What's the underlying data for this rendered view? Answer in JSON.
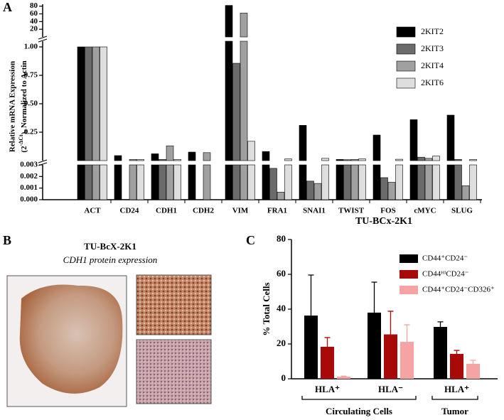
{
  "panel_labels": [
    "A",
    "B",
    "C"
  ],
  "chart_data": [
    {
      "type": "broken-bar",
      "ylabel": {
        "line1": "Relative mRNA Expression",
        "line2_a": "(2",
        "line2_sup": "-ΔCt",
        "line2_b": "), Normalized to Actin"
      },
      "categories": [
        "ACT",
        "CD24",
        "CDH1",
        "CDH2",
        "VIM",
        "FRA1",
        "SNAI1",
        "TWIST",
        "FOS",
        "cMYC",
        "SLUG"
      ],
      "series": [
        {
          "name": "2KIT2",
          "color": "#000000",
          "values": [
            1.0,
            0.044,
            0.06,
            0.075,
            82,
            0.08,
            0.31,
            0.01,
            0.225,
            0.36,
            0.4
          ]
        },
        {
          "name": "2KIT3",
          "color": "#6b6b6b",
          "values": [
            1.0,
            2e-05,
            0.01,
            null,
            0.856,
            0.0027,
            0.0016,
            0.008,
            0.0019,
            0.03,
            0.01
          ]
        },
        {
          "name": "2KIT4",
          "color": "#a0a0a0",
          "values": [
            1.0,
            0.01,
            0.13,
            0.07,
            62,
            0.00065,
            0.0014,
            0.01,
            0.0015,
            0.02,
            0.0012
          ]
        },
        {
          "name": "2KIT6",
          "color": "#dedede",
          "values": [
            1.0,
            0.01,
            0.01,
            null,
            0.17,
            0.015,
            0.02,
            0.015,
            0.012,
            0.04,
            0.01
          ]
        }
      ],
      "y_segments": [
        {
          "ylim": [
            0,
            0.003
          ],
          "yticks": [
            {
              "value": 0,
              "label": "0.000"
            },
            {
              "value": 0.001,
              "label": "0.001"
            },
            {
              "value": 0.002,
              "label": "0.002"
            },
            {
              "value": 0.003,
              "label": "0.003"
            }
          ]
        },
        {
          "ylim": [
            0,
            1.05
          ],
          "yticks": [
            0.25,
            {
              "value": 0.5,
              "label": "0.50"
            },
            0.75,
            {
              "value": 1,
              "label": "1.00"
            }
          ]
        },
        {
          "ylim": [
            0,
            85
          ],
          "yticks": [
            20,
            40,
            60,
            80
          ]
        }
      ],
      "legend": "top-right"
    },
    {
      "type": "bar-error",
      "title": "TU-BCx-2K1",
      "ylabel": "% Total Cells",
      "categories": [
        "HLA⁺",
        "HLA⁻",
        "HLA⁺"
      ],
      "group_labels": [
        "Circulating Cells",
        "Tumor"
      ],
      "series": [
        {
          "name": "CD44⁺CD24⁻",
          "color": "#000000",
          "values": [
            36.3,
            38,
            29.8
          ],
          "errors": [
            23.3,
            17.5,
            2.9
          ]
        },
        {
          "name": "CD44ᴴᴵCD24⁻",
          "color": "#a80a0a",
          "values": [
            18.4,
            25.5,
            14.3
          ],
          "errors": [
            5.3,
            13.3,
            2
          ]
        },
        {
          "name": "CD44⁺CD24⁻CD326⁺",
          "color": "#f5a3a3",
          "values": [
            1.2,
            21.2,
            8.6
          ],
          "errors": [
            0.3,
            9.8,
            2
          ]
        }
      ],
      "ylim": [
        0,
        80
      ],
      "yticks": [
        0,
        20,
        40,
        60,
        80
      ],
      "legend": "top-right"
    }
  ],
  "panel_b": {
    "title": "TU-BcX-2K1",
    "subtitle": "CDH1 protein expression"
  }
}
